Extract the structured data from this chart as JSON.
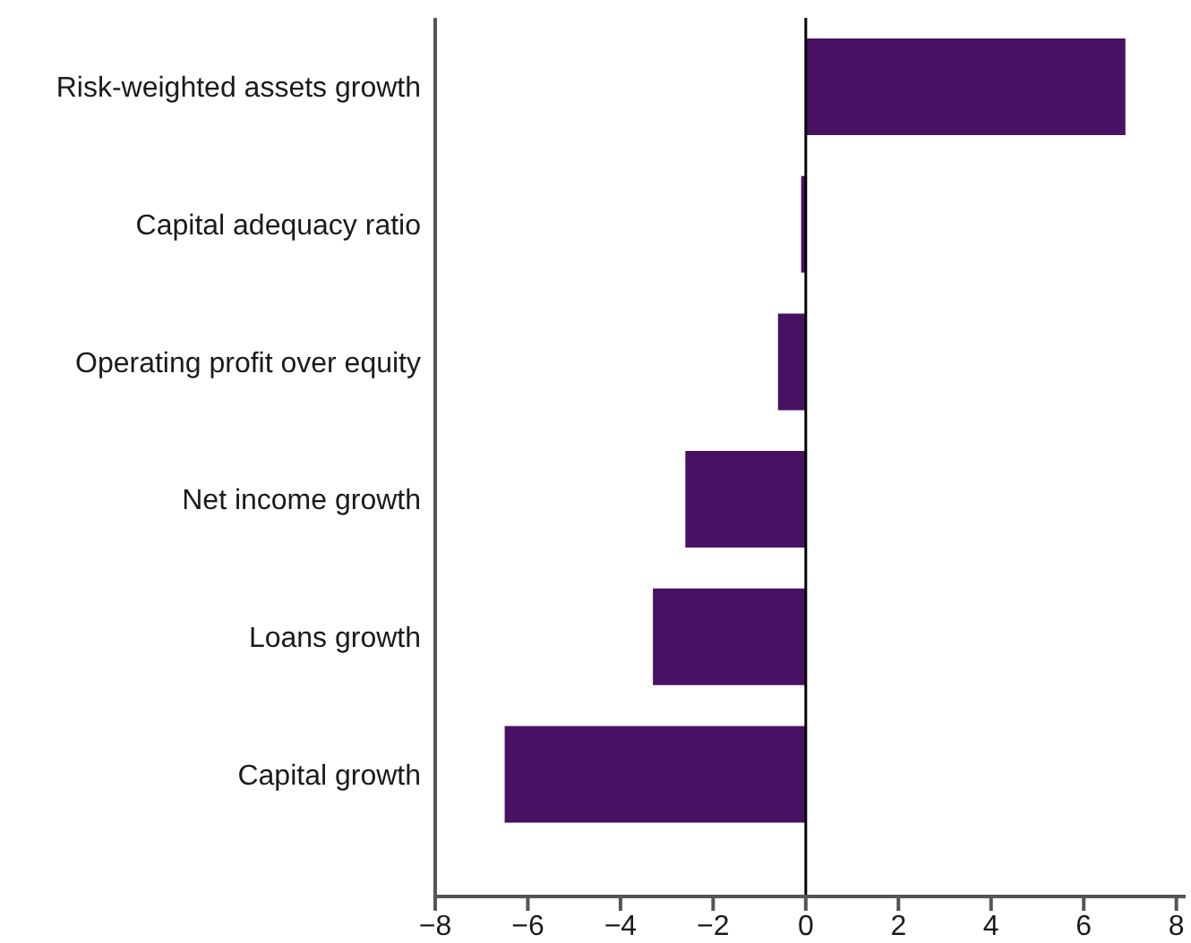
{
  "chart_data": {
    "type": "bar",
    "orientation": "horizontal",
    "categories": [
      "Risk-weighted assets growth",
      "Capital adequacy ratio",
      "Operating profit over equity",
      "Net income growth",
      "Loans growth",
      "Capital growth"
    ],
    "values": [
      6.9,
      -0.1,
      -0.6,
      -2.6,
      -3.3,
      -6.5
    ],
    "color": "#481163",
    "xlim": [
      -8,
      8.2
    ],
    "xticks": [
      -8,
      -6,
      -4,
      -2,
      0,
      2,
      4,
      6,
      8
    ],
    "ref_lines": [
      {
        "axis": "x",
        "value": 0,
        "color": "#000000"
      }
    ],
    "grid": false,
    "legend": false
  }
}
